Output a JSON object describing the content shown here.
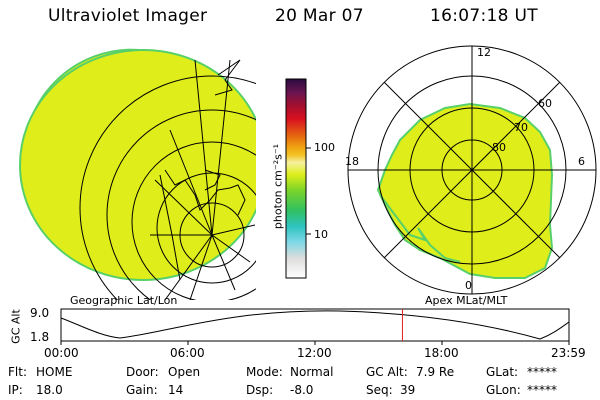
{
  "header": {
    "instrument": "Ultraviolet Imager",
    "date": "20 Mar 07",
    "time": "16:07:18 UT"
  },
  "colorbar": {
    "unit_label": "photon cm⁻²s⁻¹",
    "ticks": [
      "100",
      "10"
    ]
  },
  "polar": {
    "lat_labels": [
      "60",
      "70",
      "80"
    ],
    "mlt_labels": [
      "12",
      "18",
      "6",
      "0"
    ]
  },
  "panels": {
    "left_label": "Geographic Lat/Lon",
    "right_label": "Apex MLat/MLT"
  },
  "orbit": {
    "axis_title": "GC Alt",
    "y_ticks": [
      "9.0",
      "1.8"
    ],
    "x_ticks": [
      "00:00",
      "06:00",
      "12:00",
      "18:00",
      "23:59"
    ],
    "current_time_marker_hours": 16.12
  },
  "status": {
    "flt_label": "Flt:",
    "flt_value": "HOME",
    "ip_label": "IP:",
    "ip_value": "18.0",
    "door_label": "Door:",
    "door_value": "Open",
    "gain_label": "Gain:",
    "gain_value": "14",
    "mode_label": "Mode:",
    "mode_value": "Normal",
    "dsp_label": "Dsp:",
    "dsp_value": "-8.0",
    "gcalt_label": "GC Alt:",
    "gcalt_value": "7.9 Re",
    "seq_label": "Seq:",
    "seq_value": "39",
    "glat_label": "GLat:",
    "glat_value": "*****",
    "glon_label": "GLon:",
    "glon_value": "*****"
  },
  "colors": {
    "emission": "#dfee1a",
    "emission_edge": "#58d06a",
    "marker": "#e0201f"
  }
}
